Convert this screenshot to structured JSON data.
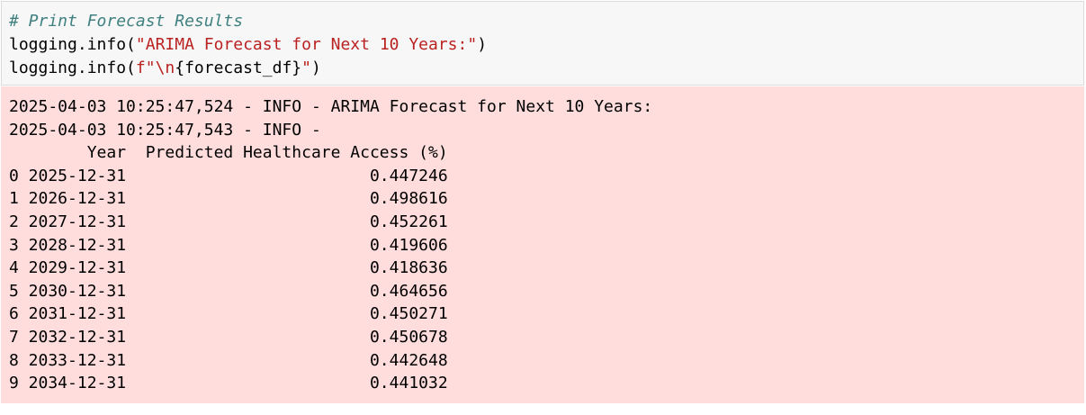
{
  "code": {
    "comment": "# Print Forecast Results",
    "line2": {
      "prefix": "logging.info(",
      "string": "\"ARIMA Forecast for Next 10 Years:\"",
      "suffix": ")"
    },
    "line3": {
      "prefix": "logging.info(",
      "fstring_start": "f\"\\n",
      "braces": "{forecast_df}",
      "fstring_end": "\"",
      "suffix": ")"
    }
  },
  "output": {
    "log_line_1": "2025-04-03 10:25:47,524 - INFO - ARIMA Forecast for Next 10 Years:",
    "log_line_2": "2025-04-03 10:25:47,543 - INFO - ",
    "table_header": "        Year  Predicted Healthcare Access (%)",
    "rows": [
      "0 2025-12-31                         0.447246",
      "1 2026-12-31                         0.498616",
      "2 2027-12-31                         0.452261",
      "3 2028-12-31                         0.419606",
      "4 2029-12-31                         0.418636",
      "5 2030-12-31                         0.464656",
      "6 2031-12-31                         0.450271",
      "7 2032-12-31                         0.450678",
      "8 2033-12-31                         0.442648",
      "9 2034-12-31                         0.441032"
    ]
  },
  "colors": {
    "code_background": "#f7f7f7",
    "comment": "#408080",
    "string": "#ba2121",
    "stderr_background": "#ffdddd"
  }
}
